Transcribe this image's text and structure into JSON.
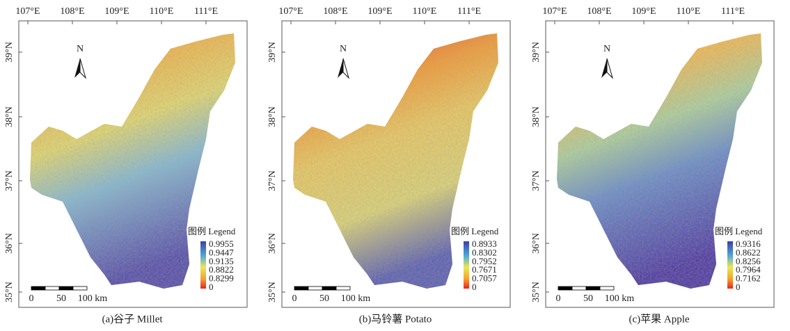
{
  "lon_labels": [
    "107°E",
    "108°E",
    "109°E",
    "110°E",
    "111°E"
  ],
  "lat_labels": [
    "39°N",
    "38°N",
    "37°N",
    "36°N",
    "35°N"
  ],
  "north": "N",
  "scale_labels": [
    "0",
    "50",
    "100 km"
  ],
  "panels": [
    {
      "caption": "(a)谷子 Millet",
      "legend": {
        "title": "图例 Legend",
        "labels": [
          "0.9955",
          "0.9447",
          "0.9135",
          "0.8822",
          "0.8299",
          "0"
        ]
      }
    },
    {
      "caption": "(b)马铃薯 Potato",
      "legend": {
        "title": "图例 Legend",
        "labels": [
          "0.8933",
          "0.8302",
          "0.7952",
          "0.7671",
          "0.7057",
          "0"
        ]
      }
    },
    {
      "caption": "(c)苹果 Apple",
      "legend": {
        "title": "图例 Legend",
        "labels": [
          "0.9316",
          "0.8622",
          "0.8256",
          "0.7964",
          "0.7162",
          "0"
        ]
      }
    }
  ]
}
